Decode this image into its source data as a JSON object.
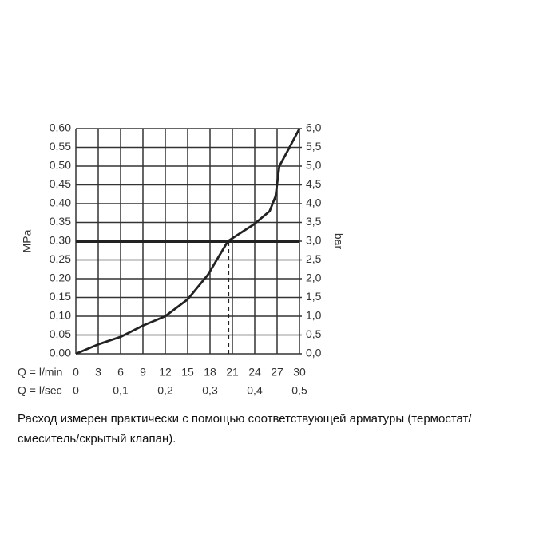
{
  "chart_data": {
    "type": "line",
    "x_axis_label": "Q = l/min",
    "x2_axis_label": "Q = l/sec",
    "y_axis_label": "MPa",
    "y2_axis_label": "bar",
    "xlim": [
      0,
      30
    ],
    "xticks": [
      0,
      3,
      6,
      9,
      12,
      15,
      18,
      21,
      24,
      27,
      30
    ],
    "x2lim": [
      0,
      0.5
    ],
    "x2ticks": [
      0,
      {
        "value": 0.1,
        "label": "0,1"
      },
      {
        "value": 0.2,
        "label": "0,2"
      },
      {
        "value": 0.3,
        "label": "0,3"
      },
      {
        "value": 0.4,
        "label": "0,4"
      },
      {
        "value": 0.5,
        "label": "0,5"
      }
    ],
    "ylim": [
      0,
      0.6
    ],
    "yticks": [
      {
        "value": 0,
        "label": "0,00"
      },
      {
        "value": 0.05,
        "label": "0,05"
      },
      {
        "value": 0.1,
        "label": "0,10"
      },
      {
        "value": 0.15,
        "label": "0,15"
      },
      {
        "value": 0.2,
        "label": "0,20"
      },
      {
        "value": 0.25,
        "label": "0,25"
      },
      {
        "value": 0.3,
        "label": "0,30"
      },
      {
        "value": 0.35,
        "label": "0,35"
      },
      {
        "value": 0.4,
        "label": "0,40"
      },
      {
        "value": 0.45,
        "label": "0,45"
      },
      {
        "value": 0.5,
        "label": "0,50"
      },
      {
        "value": 0.55,
        "label": "0,55"
      },
      {
        "value": 0.6,
        "label": "0,60"
      }
    ],
    "y2lim": [
      0,
      6
    ],
    "y2ticks": [
      {
        "value": 0,
        "label": "0,0"
      },
      {
        "value": 0.5,
        "label": "0,5"
      },
      {
        "value": 1,
        "label": "1,0"
      },
      {
        "value": 1.5,
        "label": "1,5"
      },
      {
        "value": 2,
        "label": "2,0"
      },
      {
        "value": 2.5,
        "label": "2,5"
      },
      {
        "value": 3,
        "label": "3,0"
      },
      {
        "value": 3.5,
        "label": "3,5"
      },
      {
        "value": 4,
        "label": "4,0"
      },
      {
        "value": 4.5,
        "label": "4,5"
      },
      {
        "value": 5,
        "label": "5,0"
      },
      {
        "value": 5.5,
        "label": "5,5"
      },
      {
        "value": 6,
        "label": "6,0"
      }
    ],
    "grid": true,
    "reference_y": 0.3,
    "marker_x": 20.5,
    "x": [
      0,
      3,
      6,
      9,
      12,
      15,
      17.7,
      20.4,
      23.9,
      26,
      26.8,
      27.3,
      28.4,
      30
    ],
    "series": [
      {
        "color": "#222222",
        "values": [
          0,
          0.025,
          0.045,
          0.075,
          0.1,
          0.145,
          0.21,
          0.3,
          0.345,
          0.38,
          0.42,
          0.5,
          0.54,
          0.6
        ]
      }
    ],
    "note": [
      "Расход измерен практически с помощью соответствующей арматуры (термостат/",
      "смеситель/скрытый клапан)."
    ]
  }
}
